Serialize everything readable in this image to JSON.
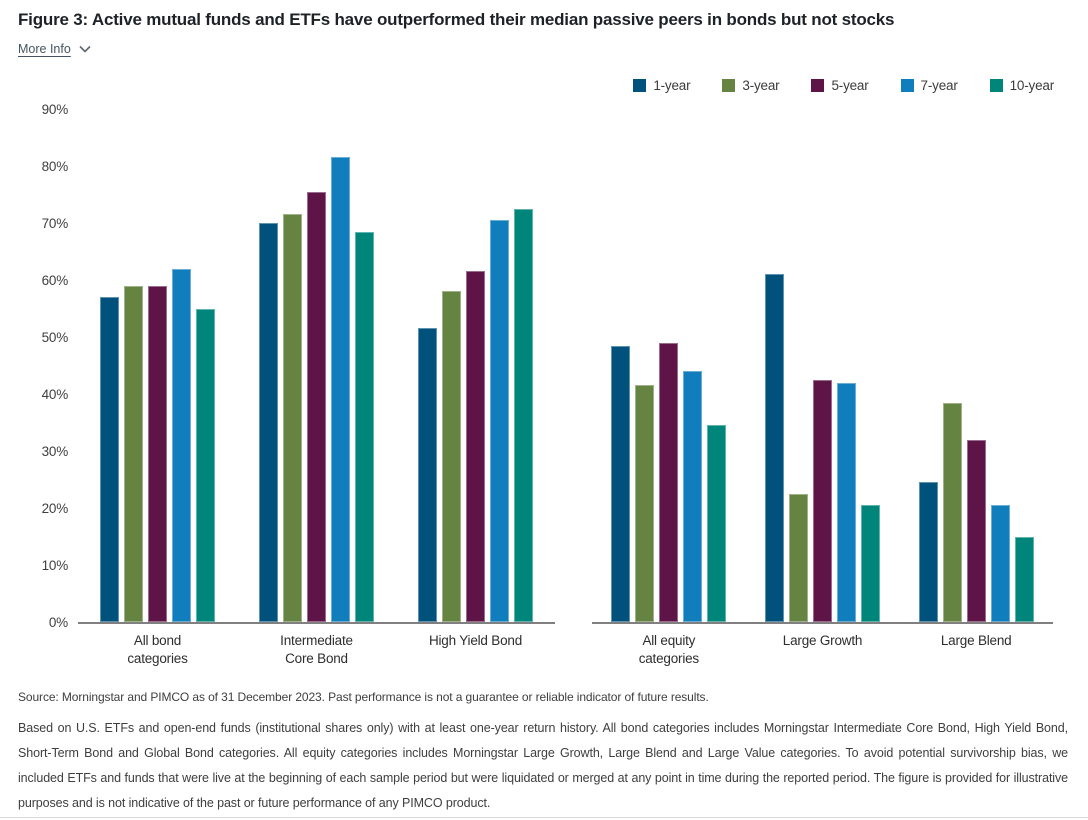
{
  "page": {
    "title": "Figure 3: Active mutual funds and ETFs have outperformed their median passive peers in bonds but not stocks",
    "more_info": {
      "label": "More Info",
      "icon": "chevron-down-icon"
    }
  },
  "chart_data": {
    "type": "bar",
    "title": "Active mutual funds and ETFs have outperformed their median passive peers in bonds but not stocks",
    "xlabel": "",
    "ylabel": "",
    "ylim": [
      0,
      90
    ],
    "yticks": [
      0,
      10,
      20,
      30,
      40,
      50,
      60,
      70,
      80,
      90
    ],
    "ytick_suffix": "%",
    "grid": false,
    "legend_position": "top-right",
    "axis_color": "#808080",
    "series": [
      {
        "name": "1-year",
        "color": "#00527c"
      },
      {
        "name": "3-year",
        "color": "#668441"
      },
      {
        "name": "5-year",
        "color": "#5e1447"
      },
      {
        "name": "7-year",
        "color": "#107dbd"
      },
      {
        "name": "10-year",
        "color": "#00857b"
      }
    ],
    "panels": [
      {
        "id": "bond-categories",
        "categories": [
          "All bond\ncategories",
          "Intermediate\nCore Bond",
          "High Yield Bond"
        ],
        "series_values": [
          [
            57,
            70,
            51.5
          ],
          [
            59,
            71.5,
            58
          ],
          [
            59,
            75.5,
            61.5
          ],
          [
            62,
            81.5,
            70.5
          ],
          [
            55,
            68.5,
            72.5
          ]
        ]
      },
      {
        "id": "equity-categories",
        "categories": [
          "All equity\ncategories",
          "Large Growth",
          "Large Blend"
        ],
        "series_values": [
          [
            48.5,
            61,
            24.5
          ],
          [
            41.5,
            22.5,
            38.5
          ],
          [
            49,
            42.5,
            32
          ],
          [
            44,
            42,
            20.5
          ],
          [
            34.5,
            20.5,
            15
          ]
        ]
      }
    ]
  },
  "footer": {
    "source": "Source: Morningstar and PIMCO as of 31 December 2023. Past performance is not a guarantee or reliable indicator of future results.",
    "note": "Based on U.S. ETFs and open-end funds (institutional shares only) with at least one-year return history. All bond categories includes Morningstar Intermediate Core Bond, High Yield Bond, Short-Term Bond and Global Bond categories. All equity categories includes Morningstar Large Growth, Large Blend and Large Value categories. To avoid potential survivorship bias, we included ETFs and funds that were live at the beginning of each sample period but were liquidated or merged at any point in time during the reported period. The figure is provided for illustrative purposes and is not indicative of the past or future performance of any PIMCO product."
  }
}
